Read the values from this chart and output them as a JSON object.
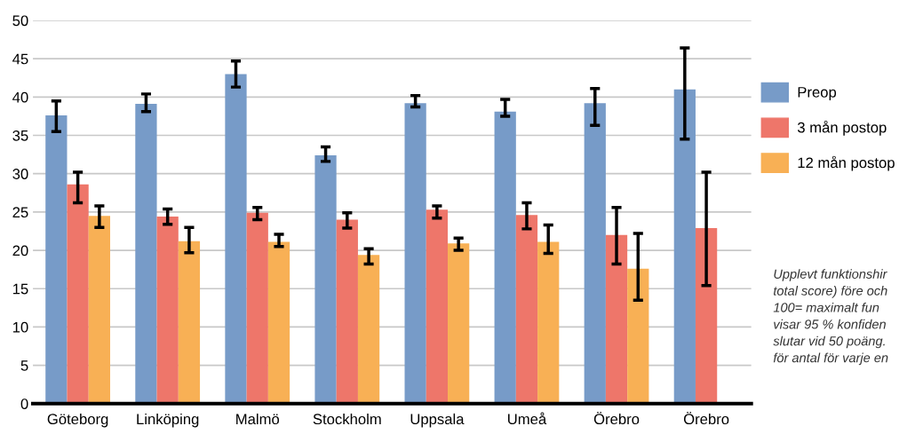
{
  "chart_data": {
    "type": "bar",
    "categories": [
      "Göteborg",
      "Linköping",
      "Malmö",
      "Stockholm",
      "Uppsala",
      "Umeå",
      "Örebro",
      "Örebro"
    ],
    "series": [
      {
        "name": "Preop",
        "color": "#779bc8",
        "values": [
          37.6,
          39.1,
          43.0,
          32.4,
          39.2,
          38.1,
          39.2,
          41.0
        ],
        "errors": [
          [
            35.5,
            39.5
          ],
          [
            38.1,
            40.4
          ],
          [
            41.3,
            44.7
          ],
          [
            31.6,
            33.5
          ],
          [
            38.7,
            40.2
          ],
          [
            37.5,
            39.7
          ],
          [
            36.3,
            41.1
          ],
          [
            34.5,
            46.4
          ]
        ]
      },
      {
        "name": "3 mån postop",
        "color": "#ee766a",
        "values": [
          28.6,
          24.4,
          24.9,
          24.0,
          25.3,
          24.6,
          22.0,
          22.9
        ],
        "errors": [
          [
            26.2,
            30.2
          ],
          [
            23.4,
            25.4
          ],
          [
            24.0,
            25.6
          ],
          [
            22.9,
            24.9
          ],
          [
            24.2,
            25.8
          ],
          [
            22.8,
            26.2
          ],
          [
            18.2,
            25.6
          ],
          [
            15.4,
            30.2
          ]
        ]
      },
      {
        "name": "12 mån postop",
        "color": "#f8b055",
        "values": [
          24.5,
          21.2,
          21.1,
          19.4,
          20.9,
          21.1,
          17.6,
          null
        ],
        "errors": [
          [
            23.0,
            25.8
          ],
          [
            19.7,
            23.0
          ],
          [
            20.5,
            22.1
          ],
          [
            18.2,
            20.2
          ],
          [
            20.0,
            21.6
          ],
          [
            19.6,
            23.3
          ],
          [
            13.5,
            22.2
          ],
          null
        ]
      }
    ],
    "ylim": [
      0,
      50
    ],
    "yticks": [
      0,
      5,
      10,
      15,
      20,
      25,
      30,
      35,
      40,
      45,
      50
    ],
    "grid": "y",
    "legend": "right",
    "annotations": [
      "Upplevt funktionshir\ntotal score) före och\n100= maximalt fun\nvisar 95 % konfiden\nslutar vid 50 poäng.\nför antal för varje en"
    ]
  }
}
